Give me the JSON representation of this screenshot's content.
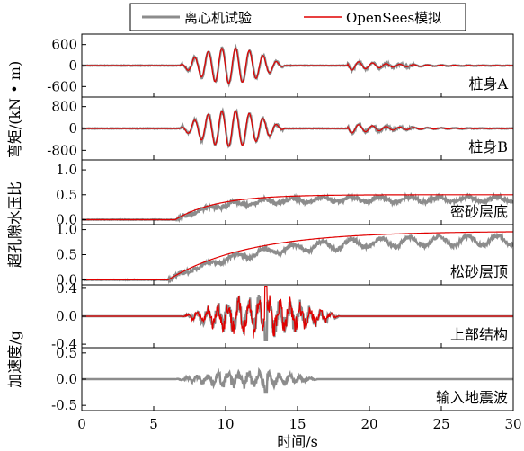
{
  "chart_data": {
    "type": "line",
    "legend": {
      "placement": "top-center",
      "entries": [
        {
          "name": "离心机试验",
          "color": "#8c8c8c"
        },
        {
          "name": "OpenSees模拟",
          "color": "#e00000"
        }
      ]
    },
    "x_axis": {
      "label": "时间/s",
      "range": [
        0,
        30
      ],
      "ticks": [
        0,
        5,
        10,
        15,
        20,
        25,
        30
      ]
    },
    "group_labels": [
      "弯矩/(kN • m)",
      "超孔隙水压比",
      "加速度/g"
    ],
    "panels": [
      {
        "id": "pile-a",
        "label": "桩身A",
        "group": "弯矩",
        "ylim": [
          -900,
          900
        ],
        "yticks": [
          -600,
          0,
          600
        ],
        "ytick_labels": [
          "-600",
          "0",
          "600"
        ],
        "signal": {
          "kind": "oscillation",
          "start": 6.8,
          "end": 18.5,
          "amplitude": 560,
          "decay": 0.08
        }
      },
      {
        "id": "pile-b",
        "label": "桩身B",
        "group": "弯矩",
        "ylim": [
          -1150,
          1150
        ],
        "yticks": [
          -800,
          0,
          800
        ],
        "ytick_labels": [
          "-800",
          "0",
          "800"
        ],
        "signal": {
          "kind": "oscillation",
          "start": 6.8,
          "end": 18.5,
          "amplitude": 720,
          "decay": 0.08
        }
      },
      {
        "id": "dense-bottom",
        "label": "密砂层底",
        "group": "超孔隙水压比",
        "ylim": [
          -0.1,
          1.2
        ],
        "yticks": [
          0.0,
          0.5,
          1.0
        ],
        "ytick_labels": [
          "0.0",
          "0.5",
          "1.0"
        ],
        "signal": {
          "kind": "rise",
          "start": 6.5,
          "plateau": 0.5,
          "rate": 0.35
        }
      },
      {
        "id": "loose-top",
        "label": "松砂层顶",
        "group": "超孔隙水压比",
        "ylim": [
          -0.1,
          1.1
        ],
        "yticks": [
          0.0,
          0.5,
          1.0
        ],
        "ytick_labels": [
          "0.0",
          "0.5",
          "1.0"
        ],
        "signal": {
          "kind": "rise",
          "start": 6.0,
          "plateau": 0.97,
          "rate": 0.18
        }
      },
      {
        "id": "upper-structure",
        "label": "上部结构",
        "group": "加速度",
        "ylim": [
          -0.45,
          0.45
        ],
        "yticks": [
          -0.4,
          0.0,
          0.4
        ],
        "ytick_labels": [
          "-0.4",
          "0.0",
          "0.4"
        ],
        "signal": {
          "kind": "noisy",
          "start": 7.0,
          "end": 18.0,
          "amplitude": 0.3,
          "spike_at": 12.8,
          "spike": 0.43
        }
      },
      {
        "id": "input-motion",
        "label": "输入地震波",
        "group": "加速度",
        "ylim": [
          -0.6,
          0.6
        ],
        "yticks": [
          -0.5,
          0.0,
          0.5
        ],
        "ytick_labels": [
          "-0.5",
          "0.0",
          "0.5"
        ],
        "signal": {
          "kind": "noisy",
          "start": 6.5,
          "end": 16.5,
          "amplitude": 0.18,
          "spike_at": 12.8,
          "spike": 0.3
        }
      }
    ]
  }
}
